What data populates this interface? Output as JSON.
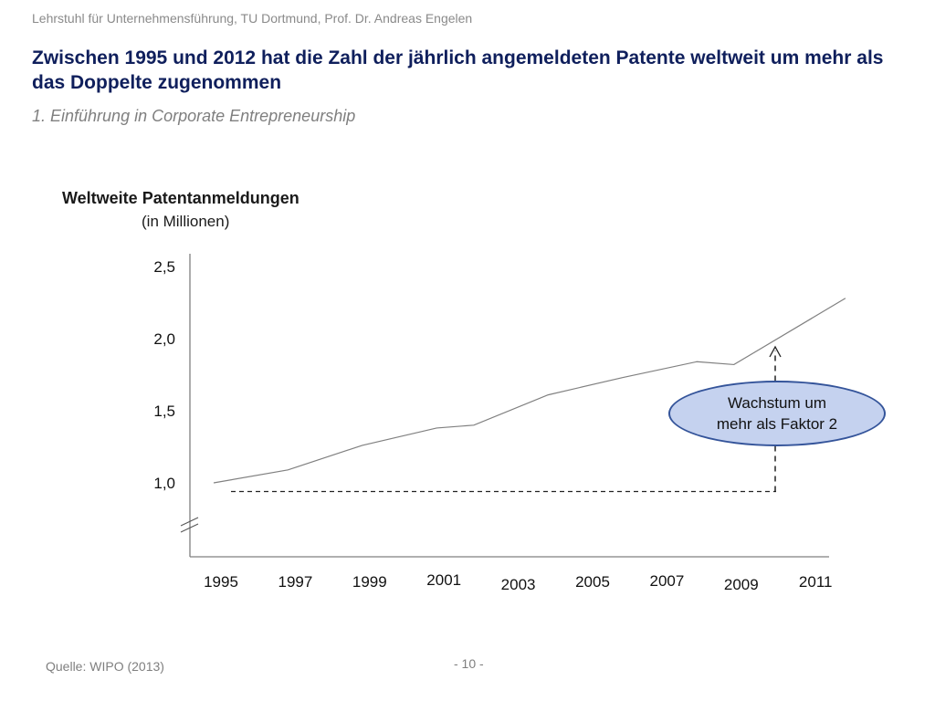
{
  "header": {
    "institution": "Lehrstuhl für Unternehmensführung, TU Dortmund,  Prof. Dr. Andreas Engelen"
  },
  "slide": {
    "title": "Zwischen 1995 und 2012 hat die Zahl der jährlich angemeldeten Patente weltweit um mehr als das Doppelte zugenommen",
    "subtitle": "1. Einführung in Corporate Entrepreneurship"
  },
  "chart_data": {
    "type": "line",
    "title": "Weltweite Patentanmeldungen",
    "unit": "(in Millionen)",
    "x": [
      1995,
      1997,
      1999,
      2001,
      2002,
      2004,
      2006,
      2008,
      2009,
      2012
    ],
    "values": [
      1.0,
      1.09,
      1.26,
      1.38,
      1.4,
      1.61,
      1.73,
      1.84,
      1.82,
      2.28
    ],
    "xticks": [
      "1995",
      "1997",
      "1999",
      "2001",
      "2003",
      "2005",
      "2007",
      "2009",
      "2011"
    ],
    "yticks": [
      "1,0",
      "1,5",
      "2,0",
      "2,5"
    ],
    "ytick_values": [
      1.0,
      1.5,
      2.0,
      2.5
    ],
    "axis_break": true,
    "baseline_value": 0.94,
    "grid": false,
    "line_color": "#808080",
    "axis_color": "#7f7f7f",
    "annotation": {
      "line1": "Wachstum um",
      "line2": "mehr als Faktor 2"
    }
  },
  "footer": {
    "source": "Quelle: WIPO (2013)",
    "page": "- 10 -"
  },
  "colors": {
    "title": "#0f1f5c",
    "annotation_fill": "#c5d2ef",
    "annotation_border": "#34549a"
  }
}
